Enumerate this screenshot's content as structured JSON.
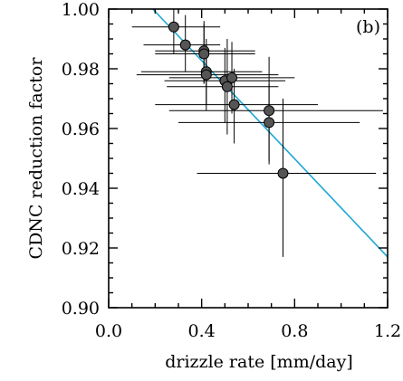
{
  "chart_data": {
    "type": "scatter",
    "panel_label": "(b)",
    "xlabel": "drizzle rate [mm/day]",
    "ylabel": "CDNC reduction factor",
    "xlim": [
      0.0,
      1.2
    ],
    "ylim": [
      0.9,
      1.0
    ],
    "x_ticks": [
      0.0,
      0.4,
      0.8,
      1.2
    ],
    "x_tick_labels": [
      "0.0",
      "0.4",
      "0.8",
      "1.2"
    ],
    "y_ticks": [
      0.9,
      0.92,
      0.94,
      0.96,
      0.98,
      1.0
    ],
    "y_tick_labels": [
      "0.90",
      "0.92",
      "0.94",
      "0.96",
      "0.98",
      "1.00"
    ],
    "grid": false,
    "colors": {
      "marker": "#555555",
      "error_bar": "#000000",
      "fit_line": "#1ea7d4"
    },
    "points": [
      {
        "x": 0.28,
        "y": 0.994,
        "x_lo": 0.1,
        "x_hi": 0.48,
        "y_lo": 0.985,
        "y_hi": 1.0
      },
      {
        "x": 0.33,
        "y": 0.988,
        "x_lo": 0.15,
        "x_hi": 0.48,
        "y_lo": 0.979,
        "y_hi": 0.998
      },
      {
        "x": 0.41,
        "y": 0.986,
        "x_lo": 0.2,
        "x_hi": 0.63,
        "y_lo": 0.975,
        "y_hi": 0.996
      },
      {
        "x": 0.41,
        "y": 0.985,
        "x_lo": 0.2,
        "x_hi": 0.63,
        "y_lo": 0.975,
        "y_hi": 0.995
      },
      {
        "x": 0.42,
        "y": 0.979,
        "x_lo": 0.14,
        "x_hi": 0.66,
        "y_lo": 0.968,
        "y_hi": 0.99
      },
      {
        "x": 0.42,
        "y": 0.978,
        "x_lo": 0.12,
        "x_hi": 0.73,
        "y_lo": 0.966,
        "y_hi": 0.988
      },
      {
        "x": 0.5,
        "y": 0.976,
        "x_lo": 0.24,
        "x_hi": 0.76,
        "y_lo": 0.962,
        "y_hi": 0.987
      },
      {
        "x": 0.51,
        "y": 0.974,
        "x_lo": 0.25,
        "x_hi": 0.73,
        "y_lo": 0.958,
        "y_hi": 0.99
      },
      {
        "x": 0.53,
        "y": 0.977,
        "x_lo": 0.26,
        "x_hi": 0.8,
        "y_lo": 0.965,
        "y_hi": 0.989
      },
      {
        "x": 0.54,
        "y": 0.968,
        "x_lo": 0.2,
        "x_hi": 0.9,
        "y_lo": 0.955,
        "y_hi": 0.98
      },
      {
        "x": 0.69,
        "y": 0.966,
        "x_lo": 0.26,
        "x_hi": 1.18,
        "y_lo": 0.948,
        "y_hi": 0.984
      },
      {
        "x": 0.69,
        "y": 0.962,
        "x_lo": 0.3,
        "x_hi": 1.08,
        "y_lo": 0.949,
        "y_hi": 0.975
      },
      {
        "x": 0.75,
        "y": 0.945,
        "x_lo": 0.38,
        "x_hi": 1.15,
        "y_lo": 0.917,
        "y_hi": 0.97
      }
    ],
    "fit_line": {
      "x": [
        0.19,
        1.2
      ],
      "y": [
        1.0,
        0.917
      ]
    }
  }
}
